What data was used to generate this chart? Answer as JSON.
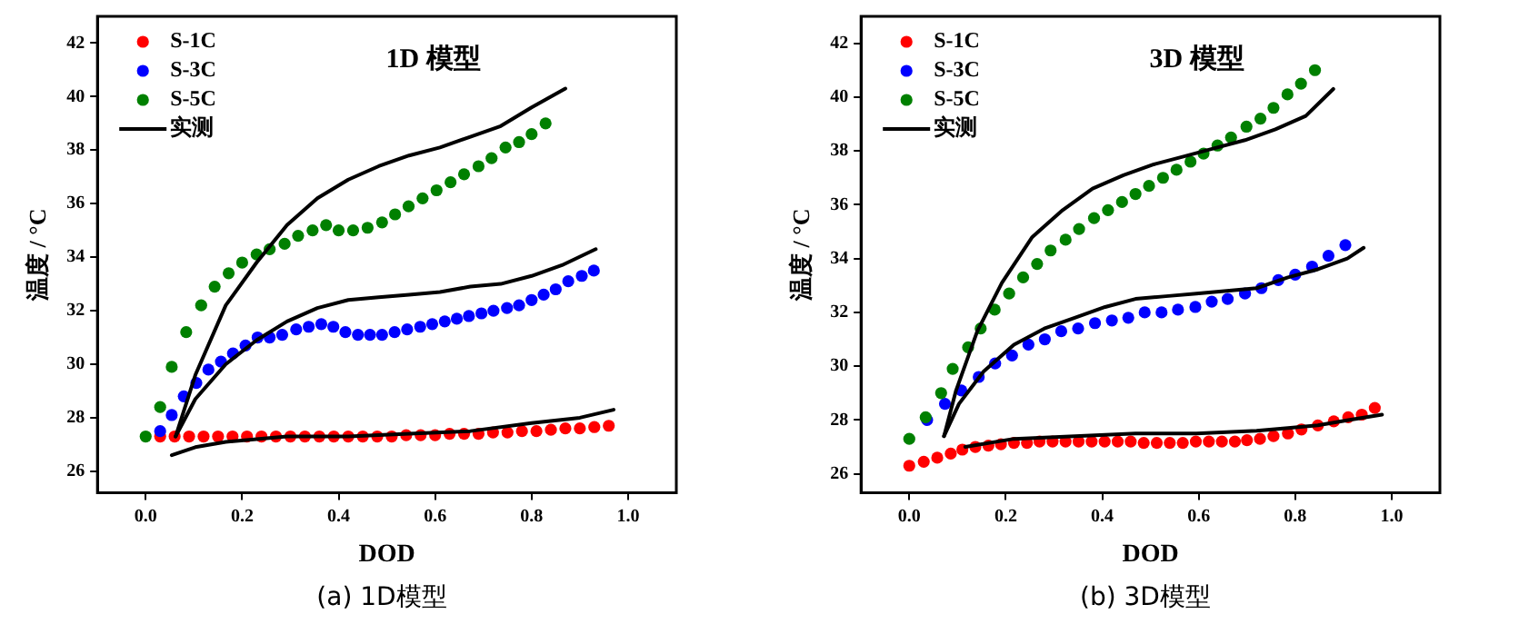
{
  "chart_data": [
    {
      "type": "scatter",
      "title": "1D 模型",
      "xlabel": "DOD",
      "ylabel": "温度 / °C",
      "annotations": [
        "(a)  1D模型"
      ],
      "legend": "top left",
      "grid": false,
      "marker": "circle",
      "xlim": [
        -0.1,
        1.1
      ],
      "xticks": [
        {
          "value": 0,
          "label": "0.0"
        },
        {
          "value": 0.2,
          "label": "0.2"
        },
        {
          "value": 0.4,
          "label": "0.4"
        },
        {
          "value": 0.6,
          "label": "0.6"
        },
        {
          "value": 0.8,
          "label": "0.8"
        },
        {
          "value": 1,
          "label": "1.0"
        }
      ],
      "ylim": [
        25.2,
        43
      ],
      "yticks": [
        26,
        28,
        30,
        32,
        34,
        36,
        38,
        40,
        42
      ],
      "series": [
        {
          "name": "S-1C",
          "color": "#ff0000",
          "x": [
            0.03,
            0.06,
            0.09,
            0.12,
            0.15,
            0.18,
            0.21,
            0.24,
            0.27,
            0.3,
            0.33,
            0.36,
            0.39,
            0.42,
            0.45,
            0.48,
            0.51,
            0.54,
            0.57,
            0.6,
            0.63,
            0.66,
            0.69,
            0.72,
            0.75,
            0.78,
            0.81,
            0.84,
            0.87,
            0.9,
            0.93,
            0.96
          ],
          "values": [
            27.3,
            27.3,
            27.3,
            27.3,
            27.3,
            27.3,
            27.3,
            27.3,
            27.3,
            27.3,
            27.3,
            27.3,
            27.3,
            27.3,
            27.3,
            27.3,
            27.3,
            27.35,
            27.35,
            27.35,
            27.4,
            27.4,
            27.4,
            27.45,
            27.45,
            27.5,
            27.5,
            27.55,
            27.6,
            27.6,
            27.65,
            27.7
          ]
        },
        {
          "name": "S-3C",
          "color": "#0000ff",
          "x": [
            0.03,
            0.054,
            0.079,
            0.105,
            0.13,
            0.156,
            0.181,
            0.207,
            0.232,
            0.257,
            0.283,
            0.312,
            0.338,
            0.364,
            0.389,
            0.414,
            0.44,
            0.465,
            0.49,
            0.516,
            0.542,
            0.569,
            0.594,
            0.62,
            0.645,
            0.67,
            0.696,
            0.721,
            0.749,
            0.774,
            0.8,
            0.825,
            0.85,
            0.876,
            0.904,
            0.929
          ],
          "values": [
            27.5,
            28.1,
            28.8,
            29.3,
            29.8,
            30.1,
            30.4,
            30.7,
            31.0,
            31.0,
            31.1,
            31.3,
            31.4,
            31.5,
            31.4,
            31.2,
            31.1,
            31.1,
            31.1,
            31.2,
            31.3,
            31.4,
            31.5,
            31.6,
            31.7,
            31.8,
            31.9,
            32.0,
            32.1,
            32.2,
            32.4,
            32.6,
            32.8,
            33.1,
            33.3,
            33.5
          ]
        },
        {
          "name": "S-5C",
          "color": "#008000",
          "x": [
            0,
            0.03,
            0.054,
            0.084,
            0.115,
            0.143,
            0.172,
            0.2,
            0.23,
            0.257,
            0.288,
            0.316,
            0.346,
            0.374,
            0.4,
            0.43,
            0.46,
            0.49,
            0.517,
            0.545,
            0.574,
            0.603,
            0.632,
            0.66,
            0.69,
            0.717,
            0.746,
            0.774,
            0.8,
            0.829
          ],
          "values": [
            27.3,
            28.4,
            29.9,
            31.2,
            32.2,
            32.9,
            33.4,
            33.8,
            34.1,
            34.3,
            34.5,
            34.8,
            35.0,
            35.2,
            35.0,
            35.0,
            35.1,
            35.3,
            35.6,
            35.9,
            36.2,
            36.5,
            36.8,
            37.1,
            37.4,
            37.7,
            38.1,
            38.3,
            38.6,
            39.0
          ]
        },
        {
          "name": "实测",
          "type": "line",
          "marker": "none",
          "color": "#000000",
          "x": [
            0.054,
            0.103,
            0.166,
            0.293,
            0.42,
            0.546,
            0.673,
            0.8,
            0.9,
            0.97
          ],
          "values": [
            26.6,
            26.9,
            27.1,
            27.3,
            27.3,
            27.4,
            27.5,
            27.8,
            28.0,
            28.3
          ]
        },
        {
          "type": "line",
          "marker": "none",
          "color": "#000000",
          "x": [
            0.062,
            0.103,
            0.166,
            0.23,
            0.293,
            0.356,
            0.42,
            0.483,
            0.546,
            0.61,
            0.673,
            0.736,
            0.8,
            0.863,
            0.933
          ],
          "values": [
            27.3,
            28.7,
            30.0,
            30.9,
            31.6,
            32.1,
            32.4,
            32.5,
            32.6,
            32.7,
            32.9,
            33.0,
            33.3,
            33.7,
            34.3
          ]
        },
        {
          "type": "line",
          "marker": "none",
          "color": "#000000",
          "x": [
            0.062,
            0.103,
            0.166,
            0.23,
            0.293,
            0.356,
            0.42,
            0.483,
            0.546,
            0.61,
            0.673,
            0.736,
            0.8,
            0.87
          ],
          "values": [
            27.3,
            29.6,
            32.2,
            33.8,
            35.2,
            36.2,
            36.9,
            37.4,
            37.8,
            38.1,
            38.5,
            38.9,
            39.6,
            40.3
          ]
        }
      ]
    },
    {
      "type": "scatter",
      "title": "3D 模型",
      "xlabel": "DOD",
      "ylabel": "温度 / °C",
      "annotations": [
        "(b)  3D模型"
      ],
      "legend": "top left",
      "grid": false,
      "marker": "circle",
      "xlim": [
        -0.1,
        1.1
      ],
      "xticks": [
        {
          "value": 0,
          "label": "0.0"
        },
        {
          "value": 0.2,
          "label": "0.2"
        },
        {
          "value": 0.4,
          "label": "0.4"
        },
        {
          "value": 0.6,
          "label": "0.6"
        },
        {
          "value": 0.8,
          "label": "0.8"
        },
        {
          "value": 1,
          "label": "1.0"
        }
      ],
      "ylim": [
        25.3,
        43
      ],
      "yticks": [
        26,
        28,
        30,
        32,
        34,
        36,
        38,
        40,
        42
      ],
      "series": [
        {
          "name": "S-1C",
          "color": "#ff0000",
          "x": [
            0,
            0.03,
            0.058,
            0.086,
            0.11,
            0.137,
            0.164,
            0.19,
            0.217,
            0.244,
            0.27,
            0.297,
            0.324,
            0.351,
            0.378,
            0.405,
            0.432,
            0.459,
            0.486,
            0.513,
            0.54,
            0.567,
            0.594,
            0.621,
            0.648,
            0.675,
            0.7,
            0.727,
            0.755,
            0.785,
            0.813,
            0.847,
            0.88,
            0.91,
            0.938,
            0.965
          ],
          "values": [
            26.3,
            26.45,
            26.6,
            26.75,
            26.9,
            27.0,
            27.05,
            27.1,
            27.15,
            27.15,
            27.2,
            27.2,
            27.2,
            27.2,
            27.2,
            27.2,
            27.2,
            27.2,
            27.15,
            27.15,
            27.15,
            27.15,
            27.2,
            27.2,
            27.2,
            27.2,
            27.25,
            27.3,
            27.4,
            27.5,
            27.65,
            27.8,
            27.95,
            28.1,
            28.2,
            28.45
          ]
        },
        {
          "name": "S-3C",
          "color": "#0000ff",
          "x": [
            0.037,
            0.074,
            0.108,
            0.144,
            0.178,
            0.213,
            0.247,
            0.281,
            0.315,
            0.35,
            0.385,
            0.42,
            0.454,
            0.488,
            0.523,
            0.557,
            0.593,
            0.627,
            0.66,
            0.696,
            0.73,
            0.765,
            0.8,
            0.835,
            0.869,
            0.904
          ],
          "values": [
            28.0,
            28.6,
            29.1,
            29.6,
            30.1,
            30.4,
            30.8,
            31.0,
            31.3,
            31.4,
            31.6,
            31.7,
            31.8,
            32.0,
            32.0,
            32.1,
            32.2,
            32.4,
            32.5,
            32.7,
            32.9,
            33.2,
            33.4,
            33.7,
            34.1,
            34.5
          ]
        },
        {
          "name": "S-5C",
          "color": "#008000",
          "x": [
            0,
            0.034,
            0.066,
            0.09,
            0.122,
            0.148,
            0.177,
            0.207,
            0.236,
            0.265,
            0.293,
            0.324,
            0.352,
            0.383,
            0.412,
            0.441,
            0.469,
            0.497,
            0.526,
            0.554,
            0.583,
            0.61,
            0.639,
            0.667,
            0.699,
            0.728,
            0.755,
            0.784,
            0.812,
            0.841
          ],
          "values": [
            27.3,
            28.1,
            29.0,
            29.9,
            30.7,
            31.4,
            32.1,
            32.7,
            33.3,
            33.8,
            34.3,
            34.7,
            35.1,
            35.5,
            35.8,
            36.1,
            36.4,
            36.7,
            37.0,
            37.3,
            37.6,
            37.9,
            38.2,
            38.5,
            38.9,
            39.2,
            39.6,
            40.1,
            40.5,
            41.0
          ]
        },
        {
          "name": "实测",
          "type": "line",
          "marker": "none",
          "color": "#000000",
          "x": [
            0.116,
            0.217,
            0.343,
            0.469,
            0.595,
            0.72,
            0.785,
            0.847,
            0.91,
            0.98
          ],
          "values": [
            27.0,
            27.3,
            27.4,
            27.5,
            27.5,
            27.6,
            27.7,
            27.8,
            28.0,
            28.2
          ]
        },
        {
          "type": "line",
          "marker": "none",
          "color": "#000000",
          "x": [
            0.072,
            0.103,
            0.154,
            0.217,
            0.28,
            0.343,
            0.406,
            0.469,
            0.532,
            0.595,
            0.658,
            0.72,
            0.785,
            0.847,
            0.908,
            0.942
          ],
          "values": [
            27.4,
            28.6,
            29.8,
            30.8,
            31.4,
            31.8,
            32.2,
            32.5,
            32.6,
            32.7,
            32.8,
            32.9,
            33.3,
            33.6,
            34.0,
            34.4
          ]
        },
        {
          "type": "line",
          "marker": "none",
          "color": "#000000",
          "x": [
            0.072,
            0.097,
            0.141,
            0.192,
            0.255,
            0.318,
            0.38,
            0.444,
            0.507,
            0.57,
            0.633,
            0.696,
            0.759,
            0.822,
            0.879
          ],
          "values": [
            27.4,
            29.1,
            31.3,
            33.1,
            34.8,
            35.8,
            36.6,
            37.1,
            37.5,
            37.8,
            38.1,
            38.4,
            38.8,
            39.3,
            40.3
          ]
        }
      ]
    }
  ]
}
